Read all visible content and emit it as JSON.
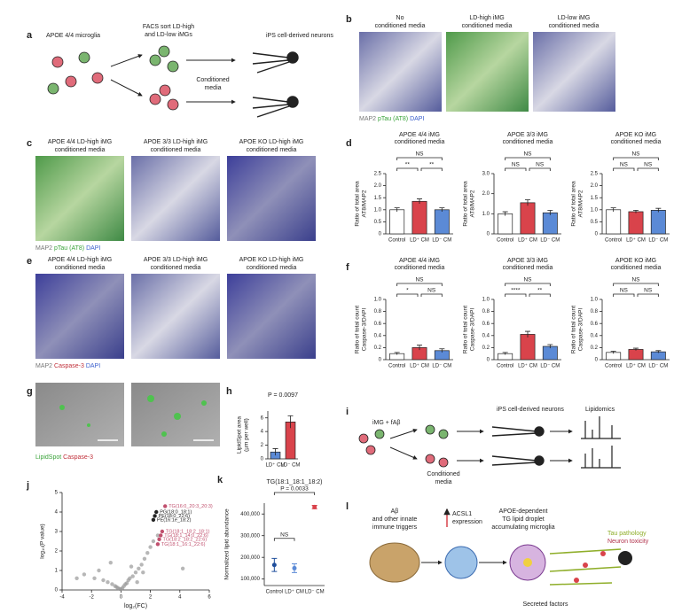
{
  "a": {
    "label": "a",
    "microglia": "APOE 4/4 microglia",
    "facs": [
      "FACS sort LD-high",
      "and LD-low iMGs"
    ],
    "neurons": "iPS cell-derived neurons",
    "media": [
      "Conditioned",
      "media"
    ]
  },
  "b": {
    "label": "b",
    "headers": [
      [
        "No",
        "conditioned media"
      ],
      [
        "LD-high iMG",
        "conditioned media"
      ],
      [
        "LD-low iMG",
        "conditioned media"
      ]
    ],
    "stains": [
      "MAP2",
      "pTau (AT8)",
      "DAPI"
    ]
  },
  "c": {
    "label": "c",
    "headers": [
      [
        "APOE 4/4 LD-high iMG",
        "conditioned media"
      ],
      [
        "APOE 3/3 LD-high iMG",
        "conditioned media"
      ],
      [
        "APOE KO LD-high iMG",
        "conditioned media"
      ]
    ],
    "stains": [
      "MAP2",
      "pTau (AT8)",
      "DAPI"
    ]
  },
  "d": {
    "label": "d",
    "charts": [
      {
        "type": "bar",
        "title": [
          "APOE 4/4 iMG",
          "conditioned media"
        ],
        "ylabel": [
          "Ratio of total area",
          "AT8/MAP2"
        ],
        "categories": [
          "Control",
          "LD⁺ CM",
          "LD⁻ CM"
        ],
        "values": [
          1.0,
          1.35,
          1.0
        ],
        "errors": [
          0.08,
          0.1,
          0.08
        ],
        "colors": [
          "#ffffff",
          "#d9434b",
          "#5b8ad6"
        ],
        "ylim": [
          0,
          2.5
        ],
        "yticks": [
          0,
          0.5,
          {
            "value": 1,
            "label": "1.0"
          },
          1.5,
          {
            "value": 2,
            "label": "2.0"
          },
          2.5
        ],
        "comparisons": [
          "NS",
          "**",
          "**"
        ]
      },
      {
        "type": "bar",
        "title": [
          "APOE 3/3 iMG",
          "conditioned media"
        ],
        "ylabel": [
          "Ratio of total area",
          "AT8/MAP2"
        ],
        "categories": [
          "Control",
          "LD⁺ CM",
          "LD⁻ CM"
        ],
        "values": [
          1.0,
          1.55,
          1.05
        ],
        "errors": [
          0.1,
          0.15,
          0.12
        ],
        "colors": [
          "#ffffff",
          "#d9434b",
          "#5b8ad6"
        ],
        "ylim": [
          0,
          3
        ],
        "yticks": [
          0,
          {
            "value": 1,
            "label": "1.0"
          },
          {
            "value": 2,
            "label": "2.0"
          },
          {
            "value": 3,
            "label": "3.0"
          }
        ],
        "comparisons": [
          "NS",
          "NS",
          "NS"
        ]
      },
      {
        "type": "bar",
        "title": [
          "APOE KO iMG",
          "conditioned media"
        ],
        "ylabel": [
          "Ratio of total area",
          "AT8/MAP2"
        ],
        "categories": [
          "Control",
          "LD⁺ CM",
          "LD⁻ CM"
        ],
        "values": [
          1.0,
          0.92,
          0.98
        ],
        "errors": [
          0.08,
          0.06,
          0.08
        ],
        "colors": [
          "#ffffff",
          "#d9434b",
          "#5b8ad6"
        ],
        "ylim": [
          0,
          2.5
        ],
        "yticks": [
          0,
          0.5,
          {
            "value": 1,
            "label": "1.0"
          },
          1.5,
          {
            "value": 2,
            "label": "2.0"
          },
          2.5
        ],
        "comparisons": [
          "NS",
          "NS",
          "NS"
        ]
      }
    ]
  },
  "e": {
    "label": "e",
    "headers": [
      [
        "APOE 4/4 LD-high iMG",
        "conditioned media"
      ],
      [
        "APOE 3/3 LD-high iMG",
        "conditioned media"
      ],
      [
        "APOE KO LD-high iMG",
        "conditioned media"
      ]
    ],
    "stains": [
      "MAP2",
      "Caspase-3",
      "DAPI"
    ]
  },
  "f": {
    "label": "f",
    "charts": [
      {
        "type": "bar",
        "title": [
          "APOE 4/4 iMG",
          "conditioned media"
        ],
        "ylabel": [
          "Ratio of total count",
          "Caspase-3/DAPI"
        ],
        "categories": [
          "Control",
          "LD⁺ CM",
          "LD⁻ CM"
        ],
        "values": [
          0.1,
          0.2,
          0.15
        ],
        "errors": [
          0.02,
          0.04,
          0.03
        ],
        "colors": [
          "#ffffff",
          "#d9434b",
          "#5b8ad6"
        ],
        "ylim": [
          0,
          1
        ],
        "yticks": [
          0,
          0.2,
          0.4,
          0.6,
          0.8,
          {
            "value": 1,
            "label": "1.0"
          }
        ],
        "comparisons": [
          "NS",
          "*",
          "NS"
        ]
      },
      {
        "type": "bar",
        "title": [
          "APOE 3/3 iMG",
          "conditioned media"
        ],
        "ylabel": [
          "Ratio of total count",
          "Caspase-3/DAPI"
        ],
        "categories": [
          "Control",
          "LD⁺ CM",
          "LD⁻ CM"
        ],
        "values": [
          0.1,
          0.42,
          0.22
        ],
        "errors": [
          0.02,
          0.05,
          0.03
        ],
        "colors": [
          "#ffffff",
          "#d9434b",
          "#5b8ad6"
        ],
        "ylim": [
          0,
          1
        ],
        "yticks": [
          0,
          0.2,
          0.4,
          0.6,
          0.8,
          {
            "value": 1,
            "label": "1.0"
          }
        ],
        "comparisons": [
          "NS",
          "****",
          "**"
        ]
      },
      {
        "type": "bar",
        "title": [
          "APOE KO iMG",
          "conditioned media"
        ],
        "ylabel": [
          "Ratio of total count",
          "Caspase-3/DAPI"
        ],
        "categories": [
          "Control",
          "LD⁺ CM",
          "LD⁻ CM"
        ],
        "values": [
          0.12,
          0.17,
          0.13
        ],
        "errors": [
          0.02,
          0.02,
          0.02
        ],
        "colors": [
          "#ffffff",
          "#d9434b",
          "#5b8ad6"
        ],
        "ylim": [
          0,
          1
        ],
        "yticks": [
          0,
          0.2,
          0.4,
          0.6,
          0.8,
          {
            "value": 1,
            "label": "1.0"
          }
        ],
        "comparisons": [
          "NS",
          "NS",
          "NS"
        ]
      }
    ]
  },
  "g": {
    "label": "g",
    "stains": [
      "LipidSpot",
      "Caspase-3"
    ]
  },
  "h": {
    "label": "h",
    "chart": {
      "type": "bar",
      "title": "P = 0.0097",
      "ylabel": [
        "LipidSpot area",
        "(µm per well)"
      ],
      "categories": [
        "LD⁺ CM",
        "LD⁻ CM"
      ],
      "values": [
        1.0,
        5.4
      ],
      "errors": [
        0.5,
        0.9
      ],
      "colors": [
        "#5b8ad6",
        "#d9434b"
      ],
      "ylim": [
        0,
        7
      ],
      "yticks": [
        0,
        2,
        4,
        6
      ]
    }
  },
  "i": {
    "label": "i",
    "stimulus": "iMG + fAβ",
    "neurons": "iPS cell-derived neurons",
    "lipidomics": "Lipidomics",
    "media": [
      "Conditioned",
      "media"
    ]
  },
  "j": {
    "label": "j",
    "chart": {
      "type": "scatter",
      "xlabel": "log₂(FC)",
      "ylabel": "log₁₀(P value)",
      "xlim": [
        -4,
        6
      ],
      "ylim": [
        0,
        5
      ],
      "xticks": [
        -4,
        -2,
        0,
        2,
        4,
        6
      ],
      "yticks": [
        0,
        1,
        2,
        3,
        4,
        5
      ],
      "x": [
        -2.5,
        -1.8,
        -1.2,
        -0.9,
        -0.6,
        -0.4,
        -0.3,
        -0.2,
        -0.1,
        0,
        0.1,
        0.2,
        0.3,
        0.4,
        0.5,
        0.6,
        0.8,
        1.0,
        1.2,
        1.4,
        1.6,
        1.8,
        2.0,
        2.2,
        2.5,
        -3.0,
        0.7,
        1.1,
        1.5,
        -1.5,
        4.2,
        -0.7
      ],
      "y": [
        0.8,
        0.6,
        0.5,
        0.4,
        0.3,
        0.2,
        0.15,
        0.1,
        0.05,
        0.05,
        0.1,
        0.2,
        0.3,
        0.35,
        0.5,
        0.6,
        0.7,
        0.9,
        1.1,
        1.3,
        1.6,
        1.9,
        2.2,
        2.5,
        2.8,
        0.6,
        1.2,
        0.4,
        0.9,
        1.0,
        1.1,
        1.4
      ],
      "color": "#999999",
      "labels": [
        {
          "text": "TG(16:0_20:3_20:3)",
          "x": 3.0,
          "y": 4.3,
          "color": "#c0506e"
        },
        {
          "text": "PG(18:0_18:1)",
          "x": 2.4,
          "y": 4.0,
          "color": "#222222"
        },
        {
          "text": "PE(18:0_22:6)",
          "x": 2.3,
          "y": 3.8,
          "color": "#222222"
        },
        {
          "text": "PE(16:1e_18:2)",
          "x": 2.2,
          "y": 3.6,
          "color": "#222222"
        },
        {
          "text": "TG(18:1_18:2_18:1)",
          "x": 2.8,
          "y": 3.0,
          "color": "#c0506e"
        },
        {
          "text": "TG(18:1_14:0_22:6)",
          "x": 2.7,
          "y": 2.8,
          "color": "#c0506e"
        },
        {
          "text": "TG(18:2_18:2_22:6)",
          "x": 2.6,
          "y": 2.6,
          "color": "#c0506e"
        },
        {
          "text": "TG(18:1_16:1_22:6)",
          "x": 2.5,
          "y": 2.35,
          "color": "#c0506e"
        }
      ]
    }
  },
  "k": {
    "label": "k",
    "chart": {
      "type": "errpoint",
      "title": "TG(18:1_18:1_18:2)",
      "ylabel": "Normalized lipid abundance",
      "categories": [
        "Control",
        "LD⁺ CM",
        "LD⁻ CM"
      ],
      "values": [
        165000,
        150000,
        432000
      ],
      "errors": [
        30000,
        20000,
        8000
      ],
      "colors": [
        "#1f4e9c",
        "#5b8ad6",
        "#d9434b"
      ],
      "ylim": [
        70000,
        450000
      ],
      "yticks": [
        {
          "value": 100000,
          "label": "100,000"
        },
        {
          "value": 200000,
          "label": "200,000"
        },
        {
          "value": 300000,
          "label": "300,000"
        },
        {
          "value": 400000,
          "label": "400,000"
        }
      ],
      "comparisons": [
        "P = 0.0033",
        "NS"
      ]
    }
  },
  "l": {
    "label": "l",
    "trigger": [
      "Aβ",
      "and other innate",
      "immune triggers"
    ],
    "acsl1": [
      "ACSL1",
      "expression"
    ],
    "microglia": [
      "APOE-dependent",
      "TG lipid droplet",
      "accumulating microglia"
    ],
    "secreted": "Secreted factors",
    "tau": "Tau pathology",
    "toxicity": "Neuron toxicity"
  }
}
